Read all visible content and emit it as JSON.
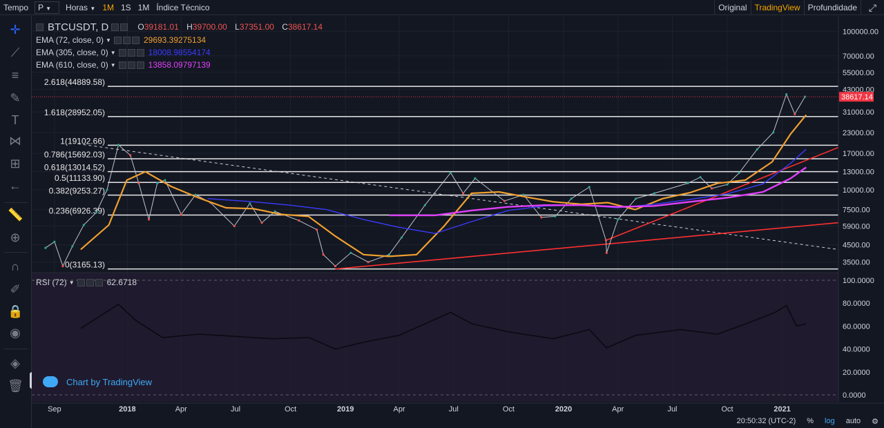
{
  "toolbar": {
    "tempo_label": "Tempo",
    "symbol_select": "P",
    "interval_select": "Horas",
    "interval_1m": "1M",
    "interval_1s": "1S",
    "interval_1mo": "1M",
    "indicators": "Índice Técnico",
    "view_original": "Original",
    "view_tradingview": "TradingView",
    "view_depth": "Profundidade"
  },
  "legend": {
    "symbol": "BTCUSDT, D",
    "o_label": "O",
    "o_value": "39181.01",
    "h_label": "H",
    "h_value": "39700.00",
    "l_label": "L",
    "l_value": "37351.00",
    "c_label": "C",
    "c_value": "38617.14",
    "ema72_label": "EMA (72, close, 0)",
    "ema72_value": "29693.39275134",
    "ema305_label": "EMA (305, close, 0)",
    "ema305_value": "18008.98554174",
    "ema610_label": "EMA (610, close, 0)",
    "ema610_value": "13858.09797139",
    "rsi_label": "RSI (72)",
    "rsi_value": "62.6718"
  },
  "watermark": "Chart by TradingView",
  "bottom": {
    "time": "20:50:32 (UTC-2)",
    "percent": "%",
    "log": "log",
    "auto": "auto"
  },
  "colors": {
    "background": "#131722",
    "ema72": "#f0a030",
    "ema305": "#3b3bff",
    "ema610": "#e040fb",
    "trend": "#ff3030",
    "price_line": "#f23645",
    "rsi_pane": "#1f1a2e"
  },
  "chart_data": {
    "type": "line",
    "title": "BTCUSDT, D",
    "scale": "log",
    "y_tick_labels": [
      "100000.00",
      "70000.00",
      "55000.00",
      "43000.00",
      "31000.00",
      "23000.00",
      "17000.00",
      "13000.00",
      "10000.00",
      "7500.00",
      "5900.00",
      "4500.00",
      "3500.00"
    ],
    "y_ticks": [
      100000,
      70000,
      55000,
      43000,
      31000,
      23000,
      17000,
      13000,
      10000,
      7500,
      5900,
      4500,
      3500
    ],
    "x_tick_labels": [
      "Sep",
      "2018",
      "Apr",
      "Jul",
      "Oct",
      "2019",
      "Apr",
      "Jul",
      "Oct",
      "2020",
      "Apr",
      "Jul",
      "Oct",
      "2021"
    ],
    "x_ticks": [
      "2017-09-01",
      "2018-01-01",
      "2018-04-01",
      "2018-07-01",
      "2018-10-01",
      "2019-01-01",
      "2019-04-01",
      "2019-07-01",
      "2019-10-01",
      "2020-01-01",
      "2020-04-01",
      "2020-07-01",
      "2020-10-01",
      "2021-01-01"
    ],
    "x_range": [
      "2017-07-25",
      "2021-04-05"
    ],
    "y_range": [
      3000,
      125000
    ],
    "last_price": 38617.14,
    "last_price_label": "38617.14",
    "fib_levels": [
      {
        "label": "2.618(44889.58)",
        "value": 44889.58
      },
      {
        "label": "1.618(28952.05)",
        "value": 28952.05
      },
      {
        "label": "1(19102.66)",
        "value": 19102.66
      },
      {
        "label": "0.786(15692.03)",
        "value": 15692.03
      },
      {
        "label": "0.618(13014.52)",
        "value": 13014.52
      },
      {
        "label": "0.5(11133.90)",
        "value": 11133.9
      },
      {
        "label": "0.382(9253.27)",
        "value": 9253.27
      },
      {
        "label": "0.236(6926.39)",
        "value": 6926.39
      },
      {
        "label": "0(3165.13)",
        "value": 3165.13
      }
    ],
    "series": [
      {
        "name": "BTCUSDT, D",
        "x": [
          "2017-08-17",
          "2017-09-01",
          "2017-09-15",
          "2017-10-01",
          "2017-10-20",
          "2017-11-10",
          "2017-11-28",
          "2017-12-17",
          "2018-01-06",
          "2018-01-20",
          "2018-02-06",
          "2018-02-20",
          "2018-03-05",
          "2018-04-01",
          "2018-04-25",
          "2018-05-20",
          "2018-06-29",
          "2018-07-25",
          "2018-08-14",
          "2018-09-05",
          "2018-10-15",
          "2018-11-14",
          "2018-11-25",
          "2018-12-15",
          "2019-01-10",
          "2019-02-08",
          "2019-03-15",
          "2019-04-05",
          "2019-05-14",
          "2019-06-26",
          "2019-07-17",
          "2019-08-06",
          "2019-09-24",
          "2019-10-26",
          "2019-11-25",
          "2019-12-18",
          "2020-01-14",
          "2020-02-13",
          "2020-03-12",
          "2020-03-13",
          "2020-04-01",
          "2020-05-01",
          "2020-06-01",
          "2020-07-27",
          "2020-08-17",
          "2020-09-05",
          "2020-10-01",
          "2020-10-21",
          "2020-11-20",
          "2020-12-17",
          "2021-01-08",
          "2021-01-22",
          "2021-02-08"
        ],
        "values": [
          4300,
          4700,
          3300,
          4400,
          6000,
          7200,
          10000,
          19200,
          16500,
          11000,
          6500,
          11000,
          11500,
          7000,
          9300,
          8300,
          5900,
          8200,
          6200,
          7300,
          6400,
          5600,
          3900,
          3300,
          4000,
          3500,
          3900,
          5000,
          8000,
          12800,
          9500,
          11800,
          8500,
          9300,
          6700,
          6800,
          8800,
          10400,
          4800,
          4000,
          6500,
          8800,
          9500,
          11000,
          12000,
          10200,
          10800,
          12800,
          18000,
          23000,
          40000,
          30000,
          38617
        ]
      },
      {
        "name": "EMA (72, close, 0)",
        "x": [
          "2017-10-15",
          "2017-12-01",
          "2017-12-31",
          "2018-01-31",
          "2018-03-15",
          "2018-04-30",
          "2018-06-15",
          "2018-07-31",
          "2018-09-15",
          "2018-10-31",
          "2018-12-15",
          "2019-01-31",
          "2019-03-15",
          "2019-04-30",
          "2019-06-15",
          "2019-07-31",
          "2019-09-15",
          "2019-10-31",
          "2019-12-15",
          "2020-01-31",
          "2020-03-15",
          "2020-04-30",
          "2020-06-15",
          "2020-07-31",
          "2020-09-15",
          "2020-10-31",
          "2020-12-15",
          "2021-01-15",
          "2021-02-10"
        ],
        "values": [
          4200,
          6000,
          11500,
          13000,
          10500,
          8900,
          7700,
          7600,
          7000,
          6800,
          5100,
          3900,
          3800,
          3900,
          5900,
          9500,
          9700,
          9000,
          8400,
          8100,
          8300,
          7500,
          8800,
          9600,
          11000,
          11500,
          15000,
          22500,
          29693
        ]
      },
      {
        "name": "EMA (305, close, 0)",
        "x": [
          "2018-05-15",
          "2018-07-31",
          "2018-09-30",
          "2018-11-30",
          "2019-01-31",
          "2019-03-31",
          "2019-05-31",
          "2019-07-31",
          "2019-09-30",
          "2019-11-30",
          "2020-01-31",
          "2020-03-31",
          "2020-05-31",
          "2020-07-31",
          "2020-09-30",
          "2020-11-30",
          "2021-01-15",
          "2021-02-10"
        ],
        "values": [
          8800,
          8400,
          8000,
          7500,
          6500,
          5800,
          5300,
          6300,
          7400,
          7900,
          8000,
          7700,
          8100,
          8700,
          9400,
          10900,
          14700,
          18008
        ]
      },
      {
        "name": "EMA (610, close, 0)",
        "x": [
          "2019-03-15",
          "2019-05-31",
          "2019-07-31",
          "2019-09-30",
          "2019-11-30",
          "2020-01-31",
          "2020-03-31",
          "2020-05-31",
          "2020-07-31",
          "2020-09-30",
          "2020-11-30",
          "2021-01-15",
          "2021-02-10"
        ],
        "values": [
          6900,
          6900,
          7400,
          7800,
          8000,
          8000,
          7800,
          7900,
          8400,
          8900,
          9700,
          11800,
          13858
        ]
      }
    ],
    "trendlines": [
      {
        "name": "dashed-resistance",
        "points": [
          [
            "2017-10-10",
            19500
          ],
          [
            "2021-04-05",
            4200
          ]
        ]
      },
      {
        "name": "support-main",
        "points": [
          [
            "2018-12-15",
            3165
          ],
          [
            "2021-04-05",
            6200
          ]
        ]
      },
      {
        "name": "support-steep",
        "points": [
          [
            "2020-03-12",
            4800
          ],
          [
            "2021-04-05",
            18500
          ]
        ]
      }
    ],
    "rsi": {
      "name": "RSI (72)",
      "y_tick_labels": [
        "100.0000",
        "80.0000",
        "60.0000",
        "40.0000",
        "20.0000",
        "0.0000"
      ],
      "y_ticks": [
        100,
        80,
        60,
        40,
        20,
        0
      ],
      "x": [
        "2017-10-15",
        "2017-12-17",
        "2018-01-15",
        "2018-03-01",
        "2018-05-01",
        "2018-07-01",
        "2018-09-01",
        "2018-11-01",
        "2018-12-15",
        "2019-02-01",
        "2019-04-01",
        "2019-06-26",
        "2019-08-01",
        "2019-10-01",
        "2019-12-15",
        "2020-02-13",
        "2020-03-13",
        "2020-05-01",
        "2020-07-15",
        "2020-09-15",
        "2020-11-01",
        "2020-12-20",
        "2021-01-08",
        "2021-01-25",
        "2021-02-10"
      ],
      "values": [
        58,
        79,
        65,
        50,
        53,
        51,
        49,
        50,
        40,
        46,
        52,
        72,
        62,
        55,
        49,
        57,
        41,
        52,
        57,
        53,
        62,
        72,
        78,
        60,
        62
      ]
    }
  }
}
